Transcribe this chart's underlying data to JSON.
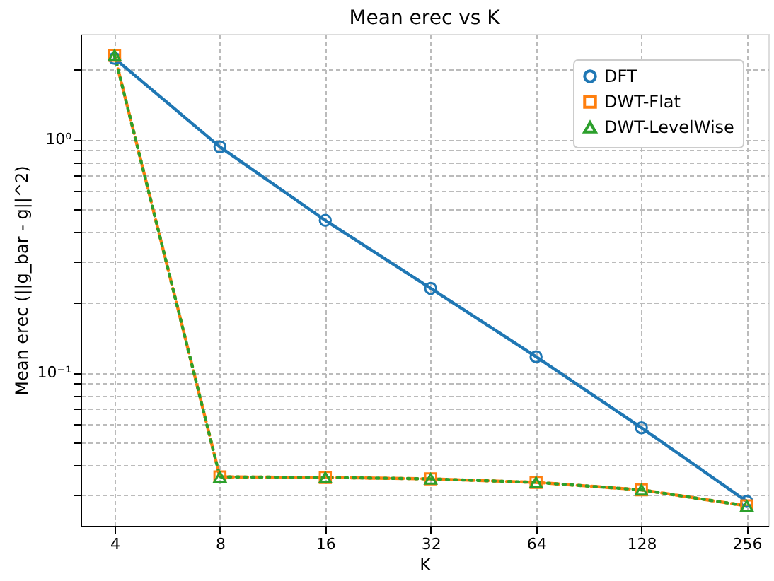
{
  "chart_data": {
    "type": "line",
    "title": "Mean erec vs K",
    "xlabel": "K",
    "ylabel": "Mean erec (||g_bar - g||^2)",
    "x": [
      4,
      8,
      16,
      32,
      64,
      128,
      256
    ],
    "series": [
      {
        "name": "DFT",
        "color": "#1f77b4",
        "marker": "circle",
        "line_style": "solid",
        "values": [
          2.23,
          0.93,
          0.45,
          0.23,
          0.117,
          0.058,
          0.028
        ]
      },
      {
        "name": "DWT-Flat",
        "color": "#ff7f0e",
        "marker": "square",
        "line_style": "dashed",
        "values": [
          2.3,
          0.0357,
          0.0355,
          0.035,
          0.0338,
          0.0314,
          0.0268
        ]
      },
      {
        "name": "DWT-LevelWise",
        "color": "#2ca02c",
        "marker": "triangle",
        "line_style": "dotted",
        "values": [
          2.3,
          0.0357,
          0.0355,
          0.035,
          0.0338,
          0.0314,
          0.0268
        ]
      }
    ],
    "log": "xy",
    "xlim": [
      3.2,
      295
    ],
    "xticks": [
      4,
      8,
      16,
      32,
      64,
      128,
      256
    ],
    "ylim": [
      0.022,
      2.84
    ],
    "yticks": [
      {
        "value": 0.03,
        "label": null
      },
      {
        "value": 0.04,
        "label": null
      },
      {
        "value": 0.05,
        "label": null
      },
      {
        "value": 0.06,
        "label": null
      },
      {
        "value": 0.07,
        "label": null
      },
      {
        "value": 0.08,
        "label": null
      },
      {
        "value": 0.09,
        "label": null
      },
      {
        "value": 0.1,
        "label": "10⁻¹"
      },
      {
        "value": 0.2,
        "label": null
      },
      {
        "value": 0.3,
        "label": null
      },
      {
        "value": 0.4,
        "label": null
      },
      {
        "value": 0.5,
        "label": null
      },
      {
        "value": 0.6,
        "label": null
      },
      {
        "value": 0.7,
        "label": null
      },
      {
        "value": 0.8,
        "label": null
      },
      {
        "value": 0.9,
        "label": null
      },
      {
        "value": 1,
        "label": "10⁰"
      },
      {
        "value": 2,
        "label": null
      }
    ],
    "grid": true,
    "legend": "top right"
  }
}
